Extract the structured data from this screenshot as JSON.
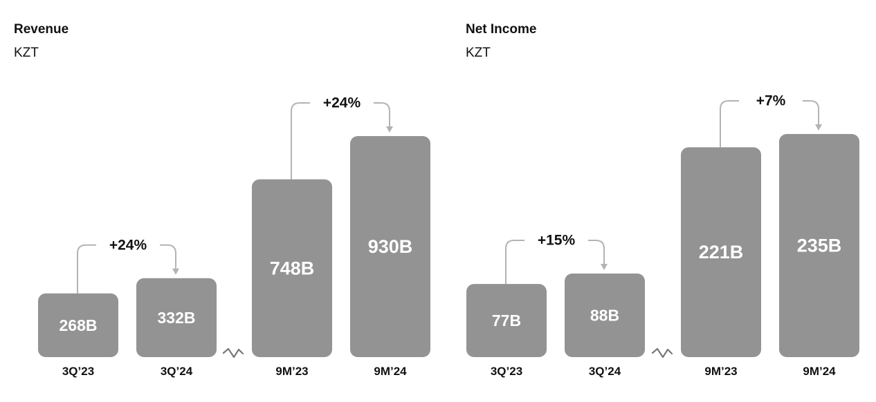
{
  "panels": [
    {
      "title": "Revenue",
      "unit": "KZT"
    },
    {
      "title": "Net Income",
      "unit": "KZT"
    }
  ],
  "colors": {
    "bar": "#939393",
    "connector": "#b3b3b3",
    "label": "#ffffff"
  },
  "chart_data": [
    {
      "type": "bar",
      "title": "Revenue",
      "subtitle": "KZT",
      "categories": [
        "3Q’23",
        "3Q’24",
        "9M’23",
        "9M’24"
      ],
      "values": [
        268,
        332,
        748,
        930
      ],
      "value_labels": [
        "268B",
        "332B",
        "748B",
        "930B"
      ],
      "axis_break_between": [
        1,
        2
      ],
      "comparisons": [
        {
          "from": 0,
          "to": 1,
          "label": "+24%"
        },
        {
          "from": 2,
          "to": 3,
          "label": "+24%"
        }
      ]
    },
    {
      "type": "bar",
      "title": "Net Income",
      "subtitle": "KZT",
      "categories": [
        "3Q’23",
        "3Q’24",
        "9M’23",
        "9M’24"
      ],
      "values": [
        77,
        88,
        221,
        235
      ],
      "value_labels": [
        "77B",
        "88B",
        "221B",
        "235B"
      ],
      "axis_break_between": [
        1,
        2
      ],
      "comparisons": [
        {
          "from": 0,
          "to": 1,
          "label": "+15%"
        },
        {
          "from": 2,
          "to": 3,
          "label": "+7%"
        }
      ]
    }
  ]
}
